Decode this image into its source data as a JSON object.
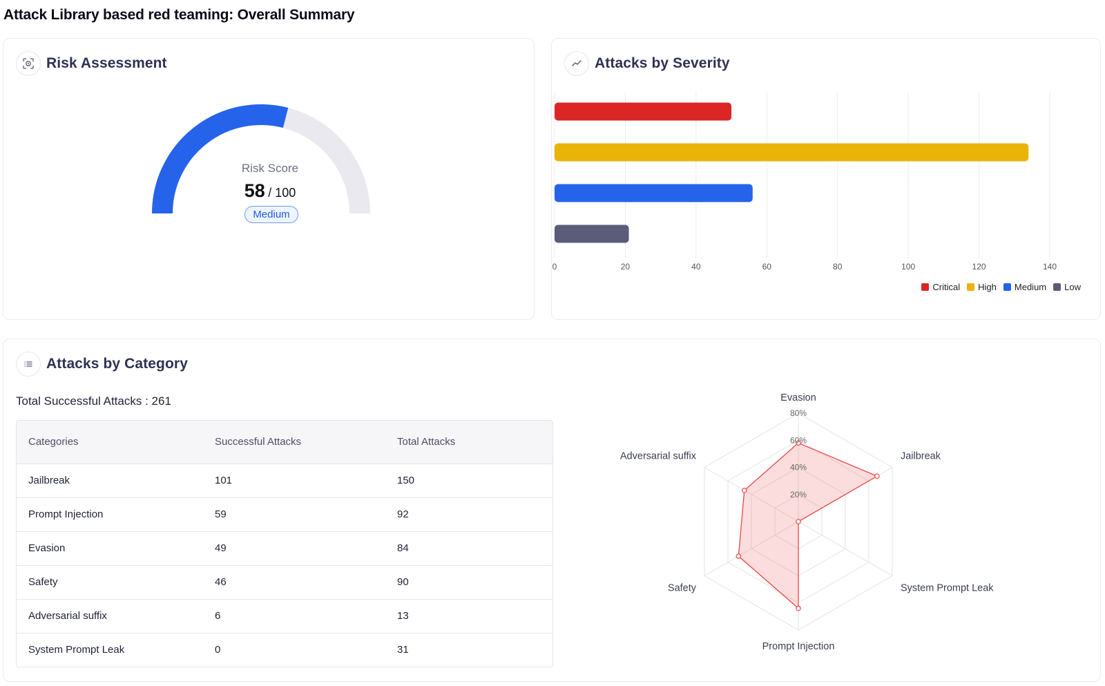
{
  "page_title": "Attack Library based red teaming: Overall Summary",
  "risk": {
    "title": "Risk Assessment",
    "icon": "scan-target-icon",
    "score_label": "Risk Score",
    "score": "58",
    "score_max": "/ 100",
    "score_fraction": 0.58,
    "level": "Medium",
    "colors": {
      "fill": "#2563eb",
      "track": "#e9e9ef"
    }
  },
  "severity": {
    "title": "Attacks by Severity",
    "icon": "trend-line-icon",
    "chart_data": {
      "type": "bar",
      "orientation": "horizontal",
      "categories": [
        "Critical",
        "High",
        "Medium",
        "Low"
      ],
      "values": [
        50,
        134,
        56,
        21
      ],
      "colors": [
        "#dc2626",
        "#eab308",
        "#2563eb",
        "#5b5b7a"
      ],
      "xlim": [
        0,
        140
      ],
      "x_ticks": [
        "0",
        "20",
        "40",
        "60",
        "80",
        "100",
        "120",
        "140"
      ],
      "grid": true,
      "legend": "bottom-right"
    }
  },
  "category": {
    "title": "Attacks by Category",
    "icon": "list-icon",
    "total_line": "Total Successful Attacks : 261",
    "table": {
      "headers": [
        "Categories",
        "Successful Attacks",
        "Total Attacks"
      ],
      "rows": [
        [
          "Jailbreak",
          "101",
          "150"
        ],
        [
          "Prompt Injection",
          "59",
          "92"
        ],
        [
          "Evasion",
          "49",
          "84"
        ],
        [
          "Safety",
          "46",
          "90"
        ],
        [
          "Adversarial suffix",
          "6",
          "13"
        ],
        [
          "System Prompt Leak",
          "0",
          "31"
        ]
      ]
    },
    "chart_data": {
      "type": "radar",
      "axes": [
        "Evasion",
        "Jailbreak",
        "System Prompt Leak",
        "Prompt Injection",
        "Safety",
        "Adversarial suffix"
      ],
      "values": [
        58,
        67,
        0,
        64,
        51,
        46
      ],
      "unit": "%",
      "r_ticks": [
        "20%",
        "40%",
        "60%",
        "80%"
      ],
      "rmax": 80,
      "color": "#ef4444"
    }
  }
}
